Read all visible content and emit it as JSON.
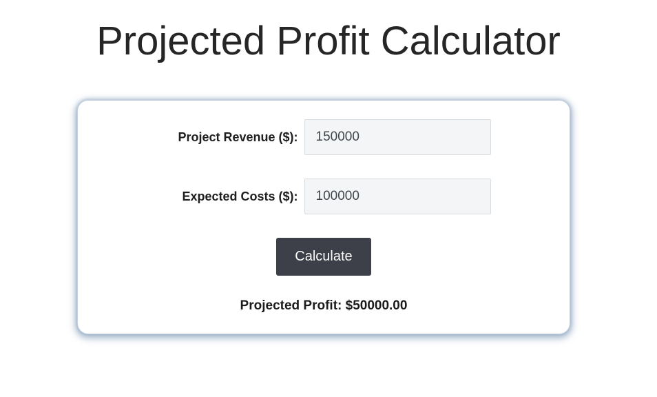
{
  "page": {
    "title": "Projected Profit Calculator"
  },
  "calculator": {
    "fields": [
      {
        "id": "revenue",
        "label": "Project Revenue ($):",
        "value": "150000"
      },
      {
        "id": "costs",
        "label": "Expected Costs ($):",
        "value": "100000"
      }
    ],
    "calculate_label": "Calculate",
    "result_text": "Projected Profit: $50000.00"
  },
  "colors": {
    "button_bg": "#3d4048",
    "button_text": "#fafafa",
    "input_bg": "#f4f5f6",
    "input_border": "#d9dcdf",
    "card_glow": "#7c98b7",
    "title_text": "#262626",
    "label_text": "#1e1e1e"
  }
}
